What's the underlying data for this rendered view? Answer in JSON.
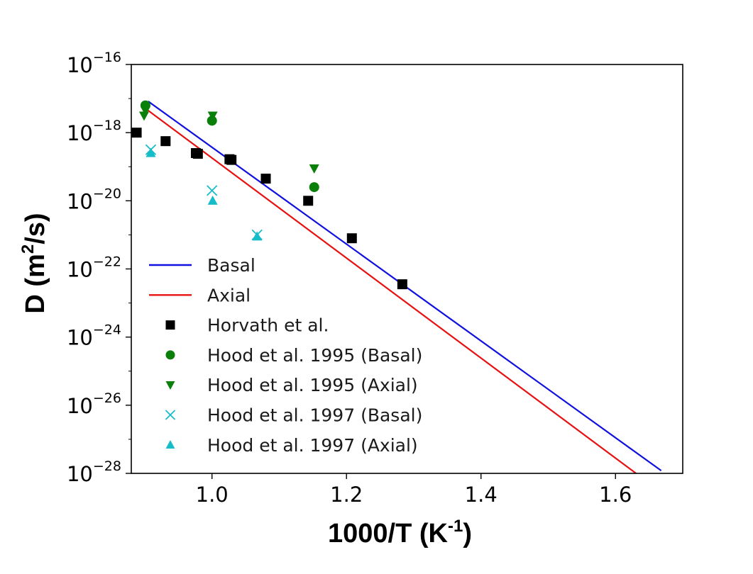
{
  "chart_data": {
    "type": "scatter",
    "xlabel": {
      "main": "1000/T (K",
      "sup": "-1",
      "end": ")"
    },
    "ylabel": {
      "main": "D (m",
      "sup": "2",
      "end": "/s)"
    },
    "xlim": [
      0.88,
      1.7
    ],
    "ylim_log10": [
      -28,
      -16
    ],
    "yscale": "log",
    "x_ticks": [
      {
        "value": 1.0,
        "label": "1.0"
      },
      {
        "value": 1.2,
        "label": "1.2"
      },
      {
        "value": 1.4,
        "label": "1.4"
      },
      {
        "value": 1.6,
        "label": "1.6"
      }
    ],
    "y_ticks": [
      {
        "exp": -16,
        "base": "10",
        "label": "−16"
      },
      {
        "exp": -18,
        "base": "10",
        "label": "−18"
      },
      {
        "exp": -20,
        "base": "10",
        "label": "−20"
      },
      {
        "exp": -22,
        "base": "10",
        "label": "−22"
      },
      {
        "exp": -24,
        "base": "10",
        "label": "−24"
      },
      {
        "exp": -26,
        "base": "10",
        "label": "−26"
      },
      {
        "exp": -28,
        "base": "10",
        "label": "−28"
      }
    ],
    "grid": false,
    "legend_position": "lower-left",
    "lines": [
      {
        "name": "Basal",
        "color": "#1010e0",
        "x": [
          0.905,
          1.668
        ],
        "log10_y": [
          -17.08,
          -27.92
        ]
      },
      {
        "name": "Axial",
        "color": "#e81010",
        "x": [
          0.905,
          1.668
        ],
        "log10_y": [
          -17.35,
          -28.55
        ]
      }
    ],
    "series": [
      {
        "name": "Horvath et al.",
        "marker": "square",
        "color": "#000000",
        "x": [
          0.888,
          0.931,
          0.976,
          0.979,
          1.026,
          1.029,
          1.08,
          1.143,
          1.208,
          1.283
        ],
        "log10_y": [
          -18.0,
          -18.25,
          -18.6,
          -18.62,
          -18.78,
          -18.8,
          -19.35,
          -20.0,
          -21.1,
          -22.45
        ]
      },
      {
        "name": "Hood et al. 1995 (Basal)",
        "marker": "circle",
        "color": "#0a7f0a",
        "x": [
          0.901,
          1.0,
          1.152
        ],
        "log10_y": [
          -17.2,
          -17.65,
          -19.6
        ]
      },
      {
        "name": "Hood et al. 1995 (Axial)",
        "marker": "triangle-down",
        "color": "#0a7f0a",
        "x": [
          0.899,
          0.901,
          1.001,
          1.152
        ],
        "log10_y": [
          -17.5,
          -17.35,
          -17.5,
          -19.05
        ]
      },
      {
        "name": "Hood et al. 1997 (Basal)",
        "marker": "x",
        "color": "#17bcc9",
        "x": [
          0.909,
          1.0,
          1.067
        ],
        "log10_y": [
          -18.5,
          -19.7,
          -21.0
        ]
      },
      {
        "name": "Hood et al. 1997 (Axial)",
        "marker": "triangle-up",
        "color": "#17bcc9",
        "x": [
          0.909,
          1.001,
          1.067
        ],
        "log10_y": [
          -18.6,
          -20.0,
          -21.05
        ]
      }
    ]
  }
}
